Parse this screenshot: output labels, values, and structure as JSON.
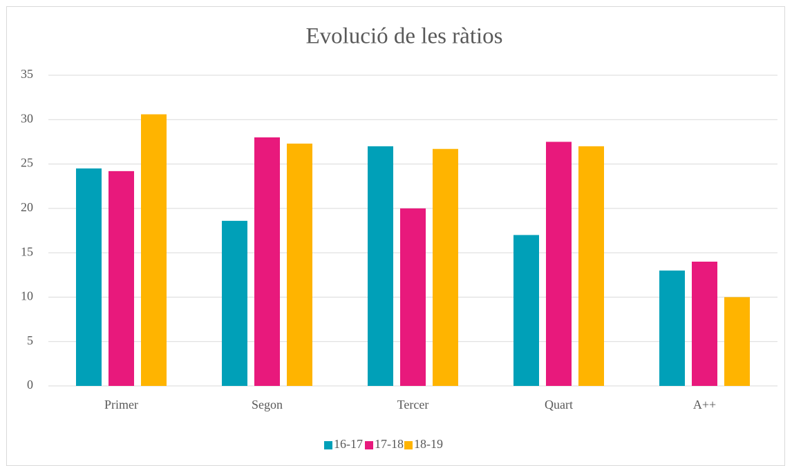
{
  "chart_data": {
    "type": "bar",
    "title": "Evolució de les ràtios",
    "categories": [
      "Primer",
      "Segon",
      "Tercer",
      "Quart",
      "A++"
    ],
    "series": [
      {
        "name": "16-17",
        "color": "#00a0b8",
        "values": [
          24.5,
          18.6,
          27,
          17,
          13
        ]
      },
      {
        "name": "17-18",
        "color": "#e8197c",
        "values": [
          24.2,
          28,
          20,
          27.5,
          14
        ]
      },
      {
        "name": "18-19",
        "color": "#ffb400",
        "values": [
          30.6,
          27.3,
          26.7,
          27,
          10
        ]
      }
    ],
    "ylim": [
      0,
      35
    ],
    "yticks": [
      0,
      5,
      10,
      15,
      20,
      25,
      30,
      35
    ],
    "grid": true,
    "legend": "bottom"
  }
}
